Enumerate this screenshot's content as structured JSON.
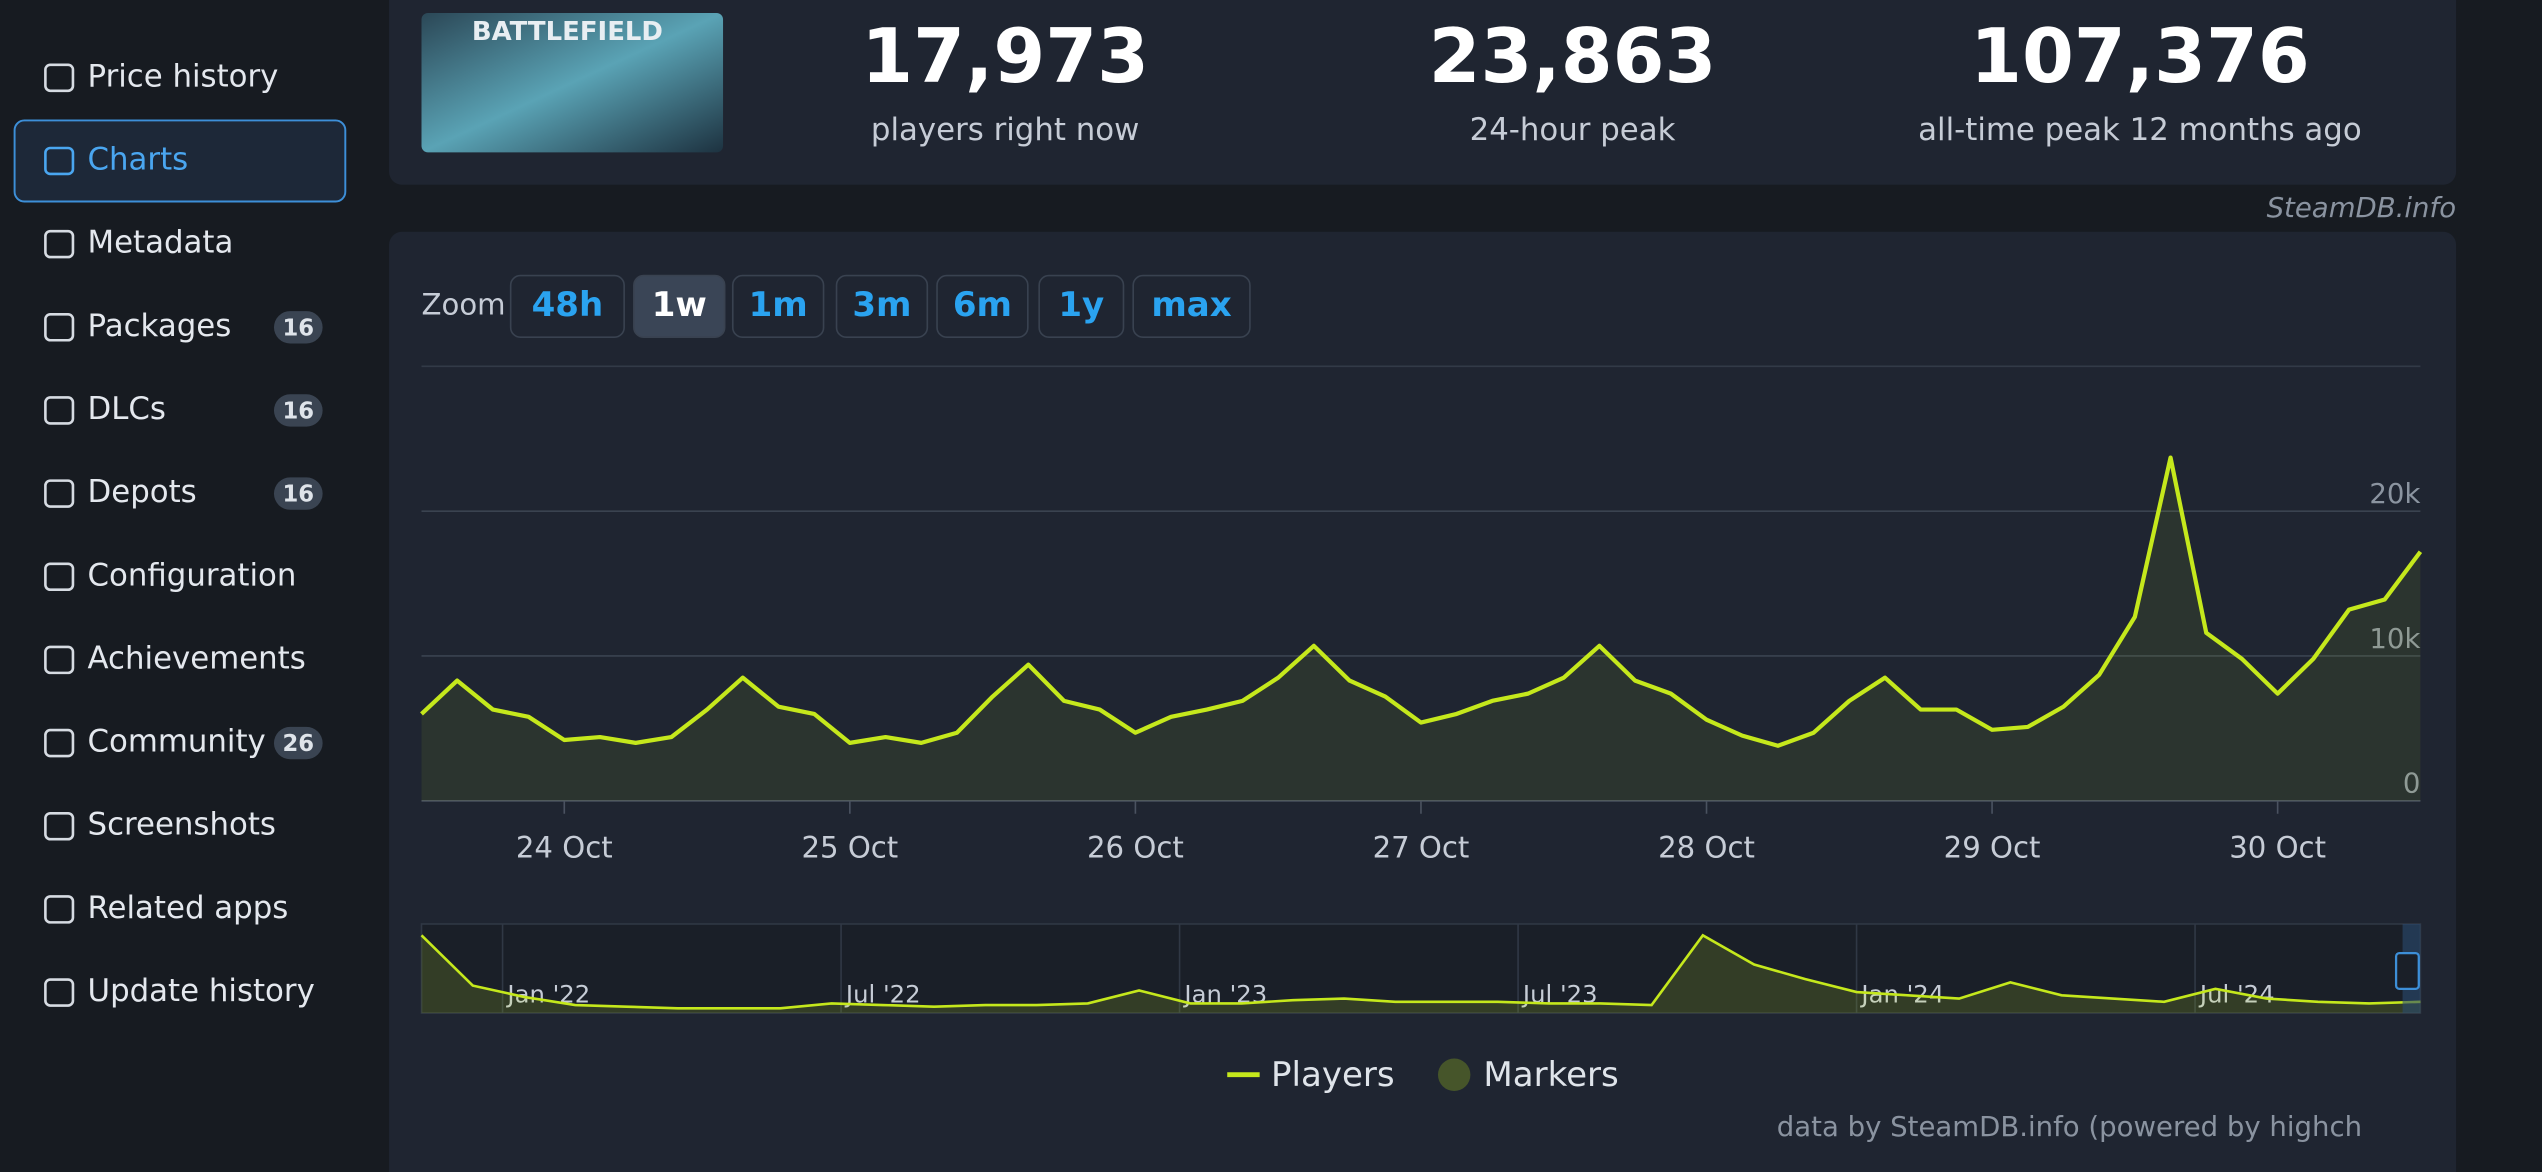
{
  "sidebar": {
    "items": [
      {
        "label": "Price history"
      },
      {
        "label": "Charts",
        "active": true
      },
      {
        "label": "Metadata"
      },
      {
        "label": "Packages",
        "count": 16
      },
      {
        "label": "DLCs",
        "count": 16
      },
      {
        "label": "Depots",
        "count": 16
      },
      {
        "label": "Configuration"
      },
      {
        "label": "Achievements"
      },
      {
        "label": "Community",
        "count": 26
      },
      {
        "label": "Screenshots"
      },
      {
        "label": "Related apps"
      },
      {
        "label": "Update history"
      }
    ]
  },
  "header": {
    "logo_text": "BATTLEFIELD",
    "stats": [
      {
        "value": "17,973",
        "label": "players right now"
      },
      {
        "value": "23,863",
        "label": "24-hour peak"
      },
      {
        "value": "107,376",
        "label": "all-time peak 12 months ago"
      }
    ],
    "credit": "SteamDB.info"
  },
  "zoom": {
    "label": "Zoom",
    "buttons": [
      {
        "label": "48h"
      },
      {
        "label": "1w",
        "active": true
      },
      {
        "label": "1m"
      },
      {
        "label": "3m"
      },
      {
        "label": "6m"
      },
      {
        "label": "1y"
      },
      {
        "label": "max"
      }
    ]
  },
  "chart_data": {
    "type": "line",
    "categories": [
      null,
      null,
      null,
      null,
      "24 Oct",
      null,
      null,
      null,
      null,
      null,
      null,
      null,
      "25 Oct",
      null,
      null,
      null,
      null,
      null,
      null,
      null,
      "26 Oct",
      null,
      null,
      null,
      null,
      null,
      null,
      null,
      "27 Oct",
      null,
      null,
      null,
      null,
      null,
      null,
      null,
      "28 Oct",
      null,
      null,
      null,
      null,
      null,
      null,
      null,
      "29 Oct",
      null,
      null,
      null,
      null,
      null,
      null,
      null,
      "30 Oct",
      null,
      null,
      null,
      null
    ],
    "series": [
      {
        "name": "Players",
        "color": "#c5e81c",
        "values": [
          6000,
          8300,
          6300,
          5800,
          4200,
          4400,
          4000,
          4400,
          6300,
          8500,
          6500,
          6000,
          4000,
          4400,
          4000,
          4700,
          7200,
          9400,
          6900,
          6300,
          4700,
          5800,
          6300,
          6900,
          8500,
          10700,
          8300,
          7200,
          5400,
          6000,
          6900,
          7400,
          8500,
          10700,
          8300,
          7400,
          5600,
          4500,
          3800,
          4700,
          6900,
          8500,
          6300,
          6300,
          4900,
          5100,
          6500,
          8700,
          12700,
          23700,
          11600,
          9800,
          7400,
          9800,
          13200,
          13900,
          17200
        ]
      }
    ],
    "ylim": [
      0,
      30000
    ],
    "yticks": [
      0,
      {
        "value": 10000,
        "label": "10k"
      },
      {
        "value": 20000,
        "label": "20k"
      }
    ],
    "grid": true,
    "markers_label": "Markers",
    "markers_color": "#46552a"
  },
  "navigator": {
    "labels": [
      "Jan '22",
      "Jul '22",
      "Jan '23",
      "Jul '23",
      "Jan '24",
      "Jul '24"
    ],
    "ylim": [
      0,
      110000
    ],
    "values": [
      96000,
      34000,
      20000,
      10000,
      8000,
      6000,
      6000,
      6000,
      12000,
      10000,
      8000,
      10000,
      10000,
      12000,
      28000,
      12000,
      12000,
      16000,
      18000,
      14000,
      14000,
      14000,
      12000,
      12000,
      10000,
      96000,
      60000,
      42000,
      26000,
      22000,
      18000,
      38000,
      22000,
      18000,
      14000,
      30000,
      18000,
      14000,
      12000,
      14000
    ]
  },
  "footer": "data by SteamDB.info (powered by highch"
}
